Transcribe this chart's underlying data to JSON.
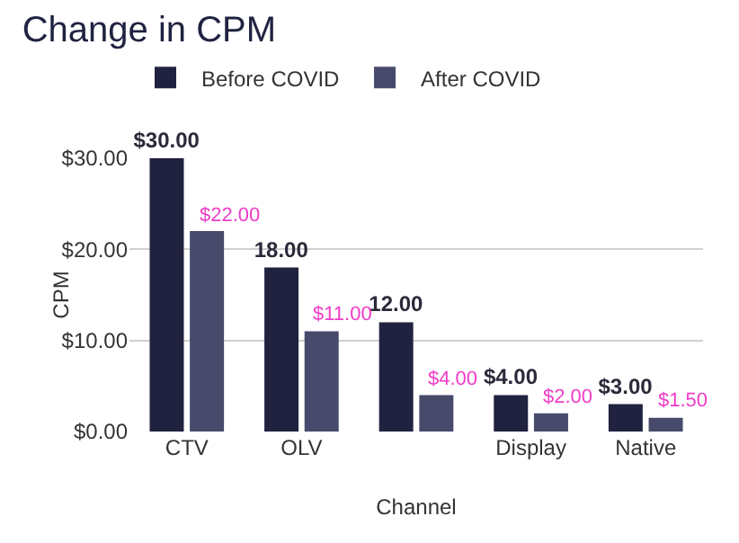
{
  "chart_data": {
    "type": "bar",
    "title": "Change in CPM",
    "xlabel": "Channel",
    "ylabel": "CPM",
    "categories": [
      "CTV",
      "OLV",
      null,
      "Display",
      "Native"
    ],
    "series": [
      {
        "name": "Before COVID",
        "color": "#20223f",
        "values": [
          30,
          18,
          12,
          4,
          3
        ],
        "value_labels": [
          "$30.00",
          "18.00",
          "12.00",
          "$4.00",
          "$3.00"
        ]
      },
      {
        "name": "After COVID",
        "color": "#474a6b",
        "values": [
          22,
          11,
          4,
          2,
          1.5
        ],
        "value_labels": [
          "$22.00",
          "$11.00",
          "$4.00",
          "$2.00",
          "$1.50"
        ]
      }
    ],
    "ylim": [
      0,
      30
    ],
    "yticks": [
      {
        "value": 0,
        "label": "$0.00"
      },
      {
        "value": 10,
        "label": "$10.00"
      },
      {
        "value": 20,
        "label": "$20.00"
      },
      {
        "value": 30,
        "label": "$30.00"
      }
    ],
    "grid": "y",
    "legend": "top left"
  }
}
